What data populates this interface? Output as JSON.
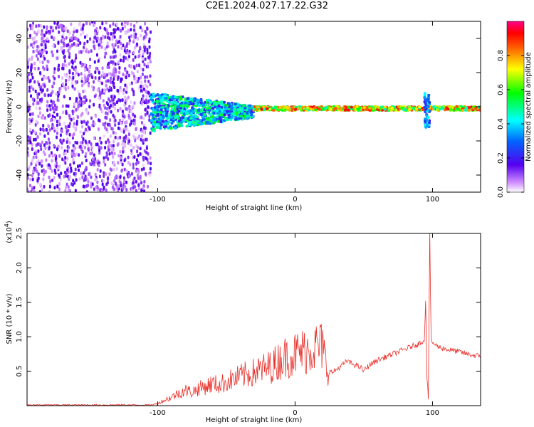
{
  "title": "C2E1.2024.027.17.22.G32",
  "chart_data": [
    {
      "type": "heatmap",
      "title": "C2E1.2024.027.17.22.G32",
      "xlabel": "Height of straight line (km)",
      "ylabel": "Frequency (Hz)",
      "xlim": [
        -195,
        135
      ],
      "ylim": [
        -50,
        50
      ],
      "x_ticks": [
        -100,
        0,
        100
      ],
      "y_ticks": [
        -40,
        -20,
        0,
        20,
        40
      ],
      "colorbar": {
        "label": "Normalized spectral amplitude",
        "range": [
          0.0,
          1.0
        ],
        "ticks": [
          0.0,
          0.2,
          0.4,
          0.6,
          0.8
        ]
      },
      "regions": [
        {
          "x_range": [
            -195,
            -105
          ],
          "freq_range": [
            -50,
            50
          ],
          "amplitude": 0.05
        },
        {
          "x_range": [
            -105,
            -30
          ],
          "freq_range": [
            -15,
            8
          ],
          "amplitude": 0.45
        },
        {
          "x_range": [
            -30,
            135
          ],
          "freq_range": [
            -2,
            1
          ],
          "amplitude": 0.9
        },
        {
          "x_range": [
            94,
            98
          ],
          "freq_range": [
            -12,
            8
          ],
          "amplitude": 0.35
        }
      ]
    },
    {
      "type": "line",
      "xlabel": "Height of straight line (km)",
      "ylabel": "SNR (10 * v/v)",
      "y_multiplier": "(x10",
      "y_multiplier_exp": "4",
      "xlim": [
        -195,
        135
      ],
      "ylim": [
        0,
        2.5
      ],
      "x_ticks": [
        -100,
        0,
        100
      ],
      "y_ticks": [
        0.5,
        1.0,
        1.5,
        2.0,
        2.5
      ],
      "y_tick_labels": [
        "0.5",
        "1.0",
        "1.5",
        "2.0",
        "2.5"
      ],
      "series": [
        {
          "color": "#e8302a",
          "x": [
            -195,
            -105,
            -100,
            -95,
            -90,
            -85,
            -80,
            -75,
            -70,
            -65,
            -60,
            -55,
            -50,
            -45,
            -40,
            -35,
            -30,
            -25,
            -20,
            -15,
            -10,
            -5,
            0,
            5,
            10,
            15,
            20,
            23,
            25,
            27,
            30,
            35,
            38,
            40,
            45,
            48,
            50,
            52,
            55,
            60,
            65,
            70,
            75,
            80,
            85,
            90,
            94,
            95,
            96,
            97,
            98,
            99,
            100,
            102,
            105,
            110,
            115,
            120,
            125,
            130,
            135
          ],
          "y": [
            0.01,
            0.01,
            0.03,
            0.08,
            0.12,
            0.18,
            0.22,
            0.2,
            0.25,
            0.28,
            0.32,
            0.3,
            0.35,
            0.38,
            0.42,
            0.45,
            0.48,
            0.52,
            0.55,
            0.6,
            0.68,
            0.72,
            0.75,
            0.78,
            0.82,
            0.85,
            0.86,
            0.55,
            0.5,
            0.48,
            0.52,
            0.6,
            0.65,
            0.62,
            0.58,
            0.55,
            0.5,
            0.55,
            0.6,
            0.66,
            0.7,
            0.74,
            0.78,
            0.82,
            0.86,
            0.9,
            0.95,
            1.5,
            0.4,
            0.1,
            2.5,
            0.95,
            0.92,
            0.88,
            0.85,
            0.82,
            0.8,
            0.78,
            0.75,
            0.73,
            0.72
          ]
        }
      ]
    }
  ]
}
